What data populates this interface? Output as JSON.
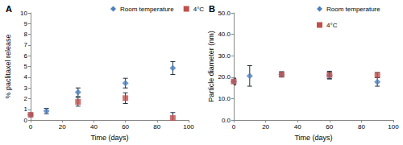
{
  "chart_data": [
    {
      "type": "scatter",
      "title": "A",
      "x_label": "Time (days)",
      "y_label": "% paclitaxel release",
      "xlim": [
        0,
        100
      ],
      "xticks": [
        0,
        20,
        40,
        60,
        80,
        100
      ],
      "ylim": [
        0,
        10
      ],
      "yticks": [
        0,
        1,
        2,
        3,
        4,
        5,
        6,
        7,
        8,
        9,
        10
      ],
      "legend": "top",
      "grid": false,
      "series": [
        {
          "name": "Room temperature",
          "color": "#4f81bd",
          "marker": "diamond",
          "x": [
            0,
            10,
            30,
            60,
            90
          ],
          "values": [
            0.5,
            0.85,
            2.6,
            3.45,
            4.85
          ],
          "errors": [
            0.1,
            0.25,
            0.4,
            0.45,
            0.6
          ]
        },
        {
          "name": "4°C",
          "color": "#c0504d",
          "marker": "square",
          "x": [
            0,
            30,
            60,
            90
          ],
          "values": [
            0.5,
            1.7,
            2.05,
            0.2
          ],
          "errors": [
            0.1,
            0.4,
            0.5,
            0.5
          ]
        }
      ]
    },
    {
      "type": "scatter",
      "title": "B",
      "x_label": "Time (days)",
      "y_label": "Particle diameter (nm)",
      "xlim": [
        0,
        100
      ],
      "xticks": [
        0,
        20,
        40,
        60,
        80,
        100
      ],
      "ylim": [
        0,
        50
      ],
      "yticks": [
        {
          "value": 0,
          "label": "0.0"
        },
        {
          "value": 10,
          "label": "10.0"
        },
        {
          "value": 20,
          "label": "20.0"
        },
        {
          "value": 30,
          "label": "30.0"
        },
        {
          "value": 40,
          "label": "40.0"
        },
        {
          "value": 50,
          "label": "50.0"
        }
      ],
      "legend": "top",
      "grid": false,
      "series": [
        {
          "name": "Room temperature",
          "color": "#4f81bd",
          "marker": "diamond",
          "x": [
            0,
            10,
            30,
            60,
            90
          ],
          "values": [
            18.0,
            20.6,
            21.3,
            20.8,
            17.8
          ],
          "errors": [
            1.5,
            4.8,
            1.2,
            1.5,
            2.0
          ]
        },
        {
          "name": "4°C",
          "color": "#c0504d",
          "marker": "square",
          "x": [
            0,
            30,
            60,
            90
          ],
          "values": [
            18.0,
            21.3,
            21.0,
            21.0
          ],
          "errors": [
            1.5,
            1.2,
            1.8,
            1.2
          ]
        }
      ]
    }
  ]
}
